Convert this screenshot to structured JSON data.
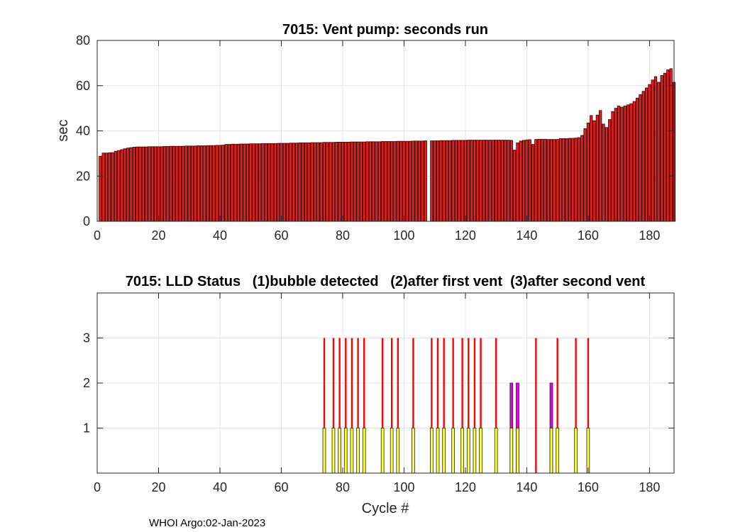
{
  "colors": {
    "bar_fill": "#e32020",
    "bar_edge": "#2a0000",
    "status_bubble": "#ffff33",
    "status_first_vent": "#e600e6",
    "status_second_vent": "#ff0000",
    "grid": "#e3e3e3"
  },
  "footer": "WHOI Argo:02-Jan-2023",
  "chart_data": [
    {
      "type": "bar",
      "title": "7015: Vent pump: seconds run",
      "xlabel": "",
      "ylabel": "sec",
      "xlim": [
        0,
        188
      ],
      "ylim": [
        0,
        80
      ],
      "xticks": [
        0,
        20,
        40,
        60,
        80,
        100,
        120,
        140,
        160,
        180
      ],
      "yticks": [
        0,
        20,
        40,
        60,
        80
      ],
      "grid": true,
      "missing_cycles": [
        108
      ],
      "x_first": 1,
      "values": [
        28.8,
        30.2,
        30.2,
        30.3,
        30.4,
        31.0,
        31.3,
        31.7,
        32.1,
        32.4,
        32.6,
        32.8,
        32.9,
        32.9,
        32.9,
        32.9,
        33.0,
        33.0,
        33.0,
        33.0,
        33.0,
        33.1,
        33.1,
        33.2,
        33.2,
        33.2,
        33.2,
        33.2,
        33.3,
        33.3,
        33.3,
        33.3,
        33.4,
        33.4,
        33.4,
        33.5,
        33.5,
        33.5,
        33.6,
        33.6,
        33.7,
        34.0,
        34.0,
        34.1,
        34.1,
        34.1,
        34.2,
        34.2,
        34.2,
        34.3,
        34.3,
        34.3,
        34.3,
        34.4,
        34.4,
        34.4,
        34.4,
        34.4,
        34.5,
        34.5,
        34.5,
        34.5,
        34.6,
        34.6,
        34.6,
        34.7,
        34.7,
        34.7,
        34.7,
        34.8,
        34.8,
        34.8,
        34.8,
        34.9,
        34.9,
        34.9,
        34.9,
        35.0,
        35.0,
        35.0,
        35.0,
        35.0,
        35.1,
        35.1,
        35.1,
        35.1,
        35.1,
        35.2,
        35.2,
        35.2,
        35.2,
        35.2,
        35.3,
        35.3,
        35.3,
        35.3,
        35.3,
        35.4,
        35.4,
        35.4,
        35.4,
        35.4,
        35.5,
        35.5,
        35.5,
        35.5,
        35.6,
        35.6,
        35.6,
        35.6,
        35.7,
        35.7,
        35.7,
        35.7,
        35.8,
        35.8,
        35.8,
        35.8,
        35.8,
        35.9,
        35.9,
        35.9,
        35.9,
        35.9,
        35.9,
        35.9,
        35.9,
        35.9,
        35.9,
        35.9,
        35.9,
        35.9,
        35.9,
        35.8,
        31.5,
        34.7,
        35.5,
        35.8,
        36.0,
        36.1,
        34.0,
        36.2,
        36.3,
        36.3,
        36.3,
        36.2,
        36.2,
        36.2,
        36.2,
        36.6,
        36.6,
        36.6,
        36.7,
        36.7,
        36.8,
        37.0,
        38.0,
        41.0,
        43.5,
        46.8,
        44.5,
        47.0,
        49.0,
        43.0,
        41.5,
        45.0,
        48.5,
        50.0,
        51.0,
        50.5,
        51.0,
        51.5,
        52.0,
        53.0,
        54.5,
        56.0,
        57.5,
        59.0,
        60.5,
        62.5,
        64.0,
        61.5,
        64.5,
        65.5,
        67.0,
        67.5,
        61.5
      ]
    },
    {
      "type": "bar",
      "title": "7015: LLD Status   (1)bubble detected   (2)after first vent  (3)after second vent",
      "xlabel": "Cycle #",
      "ylabel": "",
      "xlim": [
        0,
        188
      ],
      "ylim": [
        0,
        4
      ],
      "xticks": [
        0,
        20,
        40,
        60,
        80,
        100,
        120,
        140,
        160,
        180
      ],
      "yticks": [
        1,
        2,
        3
      ],
      "grid": true,
      "series": [
        {
          "status": 1,
          "color": "#ffff33",
          "x": [
            74,
            77,
            79,
            81,
            83,
            85,
            87,
            93,
            96,
            98,
            103,
            109,
            111,
            113,
            116,
            119,
            121,
            123,
            125,
            130,
            135,
            137,
            148,
            150,
            156,
            160
          ]
        },
        {
          "status": 2,
          "color": "#e600e6",
          "x": [
            135,
            137,
            148
          ]
        },
        {
          "status": 3,
          "color": "#ff0000",
          "x": [
            74,
            77,
            79,
            81,
            83,
            85,
            87,
            93,
            96,
            98,
            103,
            109,
            111,
            113,
            116,
            119,
            121,
            123,
            125,
            130,
            143,
            150,
            156,
            160
          ]
        }
      ]
    }
  ]
}
